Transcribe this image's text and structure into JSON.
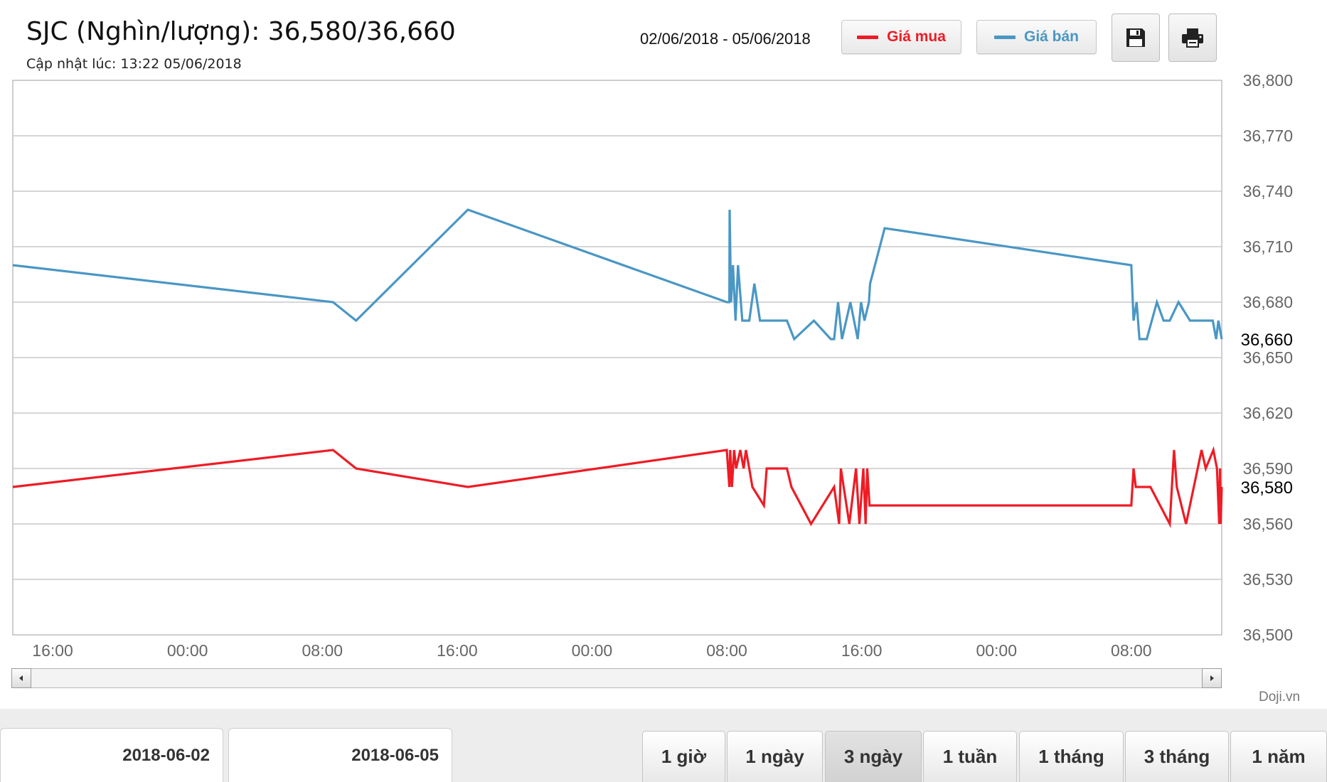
{
  "header": {
    "title": "SJC (Nghìn/lượng): 36,580/36,660",
    "updated": "Cập nhật lúc: 13:22 05/06/2018",
    "range": "02/06/2018 - 05/06/2018"
  },
  "legend": {
    "buy_label": "Giá mua",
    "sell_label": "Giá bán",
    "buy_color": "#ee1c25",
    "sell_color": "#4a97c4"
  },
  "toolbar": {
    "save_icon": "save-icon",
    "print_icon": "print-icon"
  },
  "credit": "Doji.vn",
  "date_from": "2018-06-02",
  "date_to": "2018-06-05",
  "range_tabs": [
    {
      "label": "1 giờ"
    },
    {
      "label": "1 ngày"
    },
    {
      "label": "3 ngày",
      "active": true
    },
    {
      "label": "1 tuần"
    },
    {
      "label": "1 tháng"
    },
    {
      "label": "3 tháng"
    },
    {
      "label": "1 năm"
    }
  ],
  "chart_data": {
    "type": "line",
    "x_tick_labels": [
      "16:00",
      "00:00",
      "08:00",
      "16:00",
      "00:00",
      "08:00",
      "16:00",
      "00:00",
      "08:00"
    ],
    "xlim": [
      "2018-06-02 13:38",
      "2018-06-05 13:22"
    ],
    "ylim": [
      36500,
      36800
    ],
    "y_ticks": [
      36500,
      36530,
      36560,
      36590,
      36620,
      36650,
      36680,
      36710,
      36740,
      36770,
      36800
    ],
    "y_tick_labels": [
      "36,500",
      "36,530",
      "36,560",
      "36,590",
      "36,620",
      "36,650",
      "36,680",
      "36,710",
      "36,740",
      "36,770",
      "36,800"
    ],
    "current_labels": {
      "sell": "36,660",
      "buy": "36,580"
    },
    "grid": true,
    "series": [
      {
        "name": "Giá bán",
        "color": "#4a97c4",
        "points": [
          [
            "2018-06-02 13:38",
            36700
          ],
          [
            "2018-06-03 08:38",
            36680
          ],
          [
            "2018-06-03 10:00",
            36670
          ],
          [
            "2018-06-03 16:38",
            36730
          ],
          [
            "2018-06-04 08:00",
            36680
          ],
          [
            "2018-06-04 08:09",
            36680
          ],
          [
            "2018-06-04 08:10",
            36730
          ],
          [
            "2018-06-04 08:15",
            36680
          ],
          [
            "2018-06-04 08:22",
            36700
          ],
          [
            "2018-06-04 08:31",
            36670
          ],
          [
            "2018-06-04 08:40",
            36700
          ],
          [
            "2018-06-04 08:55",
            36670
          ],
          [
            "2018-06-04 09:20",
            36670
          ],
          [
            "2018-06-04 09:38",
            36690
          ],
          [
            "2018-06-04 09:58",
            36670
          ],
          [
            "2018-06-04 10:22",
            36670
          ],
          [
            "2018-06-04 11:34",
            36670
          ],
          [
            "2018-06-04 12:00",
            36660
          ],
          [
            "2018-06-04 13:10",
            36670
          ],
          [
            "2018-06-04 14:10",
            36660
          ],
          [
            "2018-06-04 14:22",
            36660
          ],
          [
            "2018-06-04 14:36",
            36680
          ],
          [
            "2018-06-04 14:50",
            36660
          ],
          [
            "2018-06-04 15:20",
            36680
          ],
          [
            "2018-06-04 15:46",
            36660
          ],
          [
            "2018-06-04 15:58",
            36680
          ],
          [
            "2018-06-04 16:10",
            36670
          ],
          [
            "2018-06-04 16:26",
            36680
          ],
          [
            "2018-06-04 16:30",
            36690
          ],
          [
            "2018-06-04 17:22",
            36720
          ],
          [
            "2018-06-05 08:00",
            36700
          ],
          [
            "2018-06-05 08:08",
            36670
          ],
          [
            "2018-06-05 08:19",
            36680
          ],
          [
            "2018-06-05 08:29",
            36660
          ],
          [
            "2018-06-05 08:55",
            36660
          ],
          [
            "2018-06-05 09:31",
            36680
          ],
          [
            "2018-06-05 09:55",
            36670
          ],
          [
            "2018-06-05 10:17",
            36670
          ],
          [
            "2018-06-05 10:48",
            36680
          ],
          [
            "2018-06-05 11:29",
            36670
          ],
          [
            "2018-06-05 12:50",
            36670
          ],
          [
            "2018-06-05 13:02",
            36660
          ],
          [
            "2018-06-05 13:10",
            36670
          ],
          [
            "2018-06-05 13:22",
            36660
          ]
        ]
      },
      {
        "name": "Giá mua",
        "color": "#ee1c25",
        "points": [
          [
            "2018-06-02 13:38",
            36580
          ],
          [
            "2018-06-03 08:38",
            36600
          ],
          [
            "2018-06-03 10:00",
            36590
          ],
          [
            "2018-06-03 16:38",
            36580
          ],
          [
            "2018-06-04 08:00",
            36600
          ],
          [
            "2018-06-04 08:09",
            36580
          ],
          [
            "2018-06-04 08:12",
            36600
          ],
          [
            "2018-06-04 08:18",
            36580
          ],
          [
            "2018-06-04 08:26",
            36600
          ],
          [
            "2018-06-04 08:33",
            36590
          ],
          [
            "2018-06-04 08:48",
            36600
          ],
          [
            "2018-06-04 09:00",
            36590
          ],
          [
            "2018-06-04 09:08",
            36600
          ],
          [
            "2018-06-04 09:20",
            36590
          ],
          [
            "2018-06-04 09:31",
            36580
          ],
          [
            "2018-06-04 10:12",
            36570
          ],
          [
            "2018-06-04 10:22",
            36590
          ],
          [
            "2018-06-04 11:34",
            36590
          ],
          [
            "2018-06-04 11:50",
            36580
          ],
          [
            "2018-06-04 13:00",
            36560
          ],
          [
            "2018-06-04 14:22",
            36580
          ],
          [
            "2018-06-04 14:40",
            36560
          ],
          [
            "2018-06-04 14:46",
            36590
          ],
          [
            "2018-06-04 15:16",
            36560
          ],
          [
            "2018-06-04 15:40",
            36590
          ],
          [
            "2018-06-04 15:52",
            36560
          ],
          [
            "2018-06-04 16:06",
            36590
          ],
          [
            "2018-06-04 16:14",
            36560
          ],
          [
            "2018-06-04 16:20",
            36590
          ],
          [
            "2018-06-04 16:28",
            36570
          ],
          [
            "2018-06-05 08:00",
            36570
          ],
          [
            "2018-06-05 08:08",
            36590
          ],
          [
            "2018-06-05 08:16",
            36580
          ],
          [
            "2018-06-05 09:08",
            36580
          ],
          [
            "2018-06-05 10:17",
            36560
          ],
          [
            "2018-06-05 10:32",
            36600
          ],
          [
            "2018-06-05 10:42",
            36580
          ],
          [
            "2018-06-05 11:15",
            36560
          ],
          [
            "2018-06-05 12:10",
            36600
          ],
          [
            "2018-06-05 12:25",
            36590
          ],
          [
            "2018-06-05 12:52",
            36600
          ],
          [
            "2018-06-05 13:05",
            36590
          ],
          [
            "2018-06-05 13:13",
            36560
          ],
          [
            "2018-06-05 13:16",
            36590
          ],
          [
            "2018-06-05 13:18",
            36560
          ],
          [
            "2018-06-05 13:22",
            36580
          ]
        ]
      }
    ]
  }
}
